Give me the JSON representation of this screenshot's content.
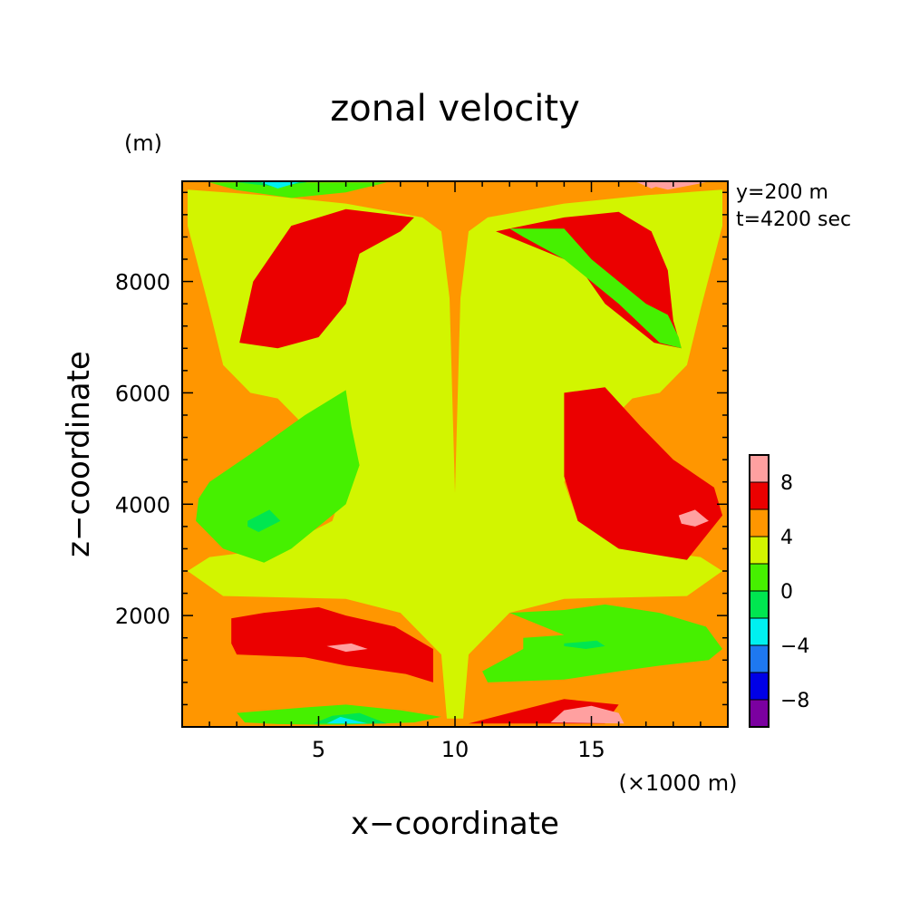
{
  "chart_data": {
    "type": "heatmap",
    "title": "zonal velocity",
    "xlabel": "x−coordinate",
    "ylabel": "z−coordinate",
    "x_unit": "(×1000 m)",
    "y_unit": "(m)",
    "annotations": [
      "y=200 m",
      "t=4200 sec"
    ],
    "xlim": [
      0,
      20
    ],
    "ylim": [
      0,
      9800
    ],
    "x_ticks": [
      5,
      10,
      15
    ],
    "x_tick_labels": [
      "5",
      "10",
      "15"
    ],
    "y_ticks": [
      2000,
      4000,
      6000,
      8000
    ],
    "y_tick_labels": [
      "2000",
      "4000",
      "6000",
      "8000"
    ],
    "grid": false,
    "colorbar": {
      "position": "right",
      "bounds": [
        -10,
        -8,
        -6,
        -4,
        -2,
        0,
        2,
        4,
        6,
        8,
        10
      ],
      "tick_labels": [
        "−8",
        "−4",
        "0",
        "4",
        "8"
      ],
      "tick_values": [
        -8,
        -4,
        0,
        4,
        8
      ],
      "colors": [
        "#7b00a0",
        "#0000e6",
        "#1e78f0",
        "#00f0f0",
        "#00e650",
        "#46f000",
        "#d2f500",
        "#ff9600",
        "#eb0000",
        "#ffa0a0"
      ]
    },
    "background_level": 1,
    "regions": [
      {
        "level": 2,
        "pts": [
          [
            0,
            0
          ],
          [
            20,
            0
          ],
          [
            20,
            9800
          ],
          [
            0,
            9800
          ]
        ]
      },
      {
        "level": 1,
        "pts": [
          [
            0.2,
            9650
          ],
          [
            3,
            9550
          ],
          [
            6,
            9400
          ],
          [
            8.8,
            9150
          ],
          [
            9.5,
            8900
          ],
          [
            9.8,
            7700
          ],
          [
            10,
            4200
          ],
          [
            10.2,
            7700
          ],
          [
            10.5,
            8900
          ],
          [
            11.2,
            9150
          ],
          [
            14,
            9400
          ],
          [
            17,
            9550
          ],
          [
            19.8,
            9650
          ],
          [
            19.8,
            9000
          ],
          [
            19,
            7500
          ],
          [
            18.5,
            6500
          ],
          [
            17.5,
            6000
          ],
          [
            16.5,
            5900
          ],
          [
            15.5,
            5400
          ],
          [
            14.5,
            4900
          ],
          [
            14,
            4400
          ],
          [
            14.5,
            3700
          ],
          [
            16.5,
            3200
          ],
          [
            19,
            3050
          ],
          [
            19.8,
            2800
          ],
          [
            18.5,
            2350
          ],
          [
            14,
            2300
          ],
          [
            12,
            2050
          ],
          [
            10.5,
            1300
          ],
          [
            10.3,
            150
          ],
          [
            9.7,
            150
          ],
          [
            9.5,
            1300
          ],
          [
            8,
            2050
          ],
          [
            6,
            2300
          ],
          [
            1.5,
            2350
          ],
          [
            0.2,
            2800
          ],
          [
            1,
            3050
          ],
          [
            3.5,
            3200
          ],
          [
            5.5,
            3700
          ],
          [
            6,
            4400
          ],
          [
            5.5,
            4900
          ],
          [
            4.5,
            5400
          ],
          [
            3.5,
            5900
          ],
          [
            2.5,
            6000
          ],
          [
            1.5,
            6500
          ],
          [
            1,
            7500
          ],
          [
            0.2,
            9000
          ]
        ]
      },
      {
        "level": 3,
        "pts": [
          [
            2.1,
            6900
          ],
          [
            2.6,
            8000
          ],
          [
            4,
            9000
          ],
          [
            6,
            9300
          ],
          [
            8.5,
            9150
          ],
          [
            8,
            8900
          ],
          [
            6.5,
            8500
          ],
          [
            6,
            7600
          ],
          [
            5,
            7000
          ],
          [
            3.5,
            6800
          ]
        ]
      },
      {
        "level": 3,
        "pts": [
          [
            14,
            9150
          ],
          [
            16,
            9250
          ],
          [
            17.2,
            8900
          ],
          [
            17.8,
            8200
          ],
          [
            18,
            7300
          ],
          [
            18.3,
            6800
          ],
          [
            17.3,
            6900
          ],
          [
            15.5,
            7600
          ],
          [
            14.5,
            8300
          ],
          [
            11.5,
            8900
          ]
        ]
      },
      {
        "level": 3,
        "pts": [
          [
            14,
            6000
          ],
          [
            15.5,
            6100
          ],
          [
            16.8,
            5400
          ],
          [
            18,
            4800
          ],
          [
            19.5,
            4300
          ],
          [
            19.8,
            3800
          ],
          [
            18.5,
            3000
          ],
          [
            16,
            3200
          ],
          [
            14.5,
            3700
          ],
          [
            14,
            4500
          ]
        ]
      },
      {
        "level": 3,
        "pts": [
          [
            1.8,
            1950
          ],
          [
            3,
            2050
          ],
          [
            5,
            2150
          ],
          [
            6,
            2000
          ],
          [
            7.8,
            1800
          ],
          [
            9.2,
            1400
          ],
          [
            9.2,
            800
          ],
          [
            8.2,
            950
          ],
          [
            6,
            1100
          ],
          [
            4.5,
            1250
          ],
          [
            2,
            1300
          ],
          [
            1.8,
            1500
          ]
        ]
      },
      {
        "level": 3,
        "pts": [
          [
            10.5,
            60
          ],
          [
            12,
            250
          ],
          [
            14,
            500
          ],
          [
            16,
            400
          ],
          [
            15.5,
            60
          ]
        ]
      },
      {
        "level": 0,
        "pts": [
          [
            2,
            250
          ],
          [
            2.3,
            80
          ],
          [
            3.5,
            50
          ],
          [
            5,
            40
          ],
          [
            6,
            40
          ],
          [
            8.5,
            80
          ],
          [
            9.5,
            180
          ],
          [
            8,
            300
          ],
          [
            6,
            400
          ],
          [
            4.5,
            350
          ]
        ]
      },
      {
        "level": 0,
        "pts": [
          [
            1,
            9780
          ],
          [
            2,
            9640
          ],
          [
            4,
            9500
          ],
          [
            6,
            9600
          ],
          [
            7.5,
            9780
          ]
        ]
      },
      {
        "level": 0,
        "pts": [
          [
            12,
            8950
          ],
          [
            14,
            8950
          ],
          [
            15,
            8400
          ],
          [
            16,
            8000
          ],
          [
            17,
            7600
          ],
          [
            17.8,
            7400
          ],
          [
            18.2,
            7000
          ],
          [
            18.3,
            6800
          ],
          [
            17.5,
            6900
          ],
          [
            16,
            7600
          ],
          [
            14,
            8400
          ],
          [
            12.5,
            8800
          ]
        ]
      },
      {
        "level": 0,
        "pts": [
          [
            0.6,
            4100
          ],
          [
            1,
            4400
          ],
          [
            2.5,
            4900
          ],
          [
            4.5,
            5600
          ],
          [
            6,
            6050
          ],
          [
            6.2,
            5400
          ],
          [
            6.5,
            4700
          ],
          [
            6,
            4000
          ],
          [
            4,
            3200
          ],
          [
            3,
            2950
          ],
          [
            1.5,
            3200
          ],
          [
            0.5,
            3700
          ]
        ]
      },
      {
        "level": 0,
        "pts": [
          [
            12,
            2050
          ],
          [
            14,
            2100
          ],
          [
            15.5,
            2200
          ],
          [
            17.5,
            2050
          ],
          [
            19.2,
            1800
          ],
          [
            19.8,
            1400
          ],
          [
            19.3,
            1200
          ],
          [
            17.5,
            1100
          ],
          [
            16,
            1000
          ],
          [
            14,
            850
          ],
          [
            11.2,
            800
          ],
          [
            11,
            1000
          ],
          [
            12.5,
            1400
          ],
          [
            12.5,
            1600
          ],
          [
            14,
            1650
          ]
        ]
      },
      {
        "level": -1,
        "pts": [
          [
            2.4,
            3700
          ],
          [
            3.2,
            3900
          ],
          [
            3.6,
            3700
          ],
          [
            3.2,
            3600
          ],
          [
            2.8,
            3500
          ],
          [
            2.4,
            3600
          ]
        ]
      },
      {
        "level": -1,
        "pts": [
          [
            14,
            1500
          ],
          [
            15.2,
            1550
          ],
          [
            15.5,
            1450
          ],
          [
            14.8,
            1400
          ],
          [
            14,
            1450
          ]
        ]
      },
      {
        "level": -1,
        "pts": [
          [
            4.8,
            9800
          ],
          [
            3.5,
            9700
          ],
          [
            2,
            9780
          ]
        ]
      },
      {
        "level": -1,
        "pts": [
          [
            4.8,
            60
          ],
          [
            5.5,
            200
          ],
          [
            6.5,
            250
          ],
          [
            7.5,
            60
          ]
        ]
      },
      {
        "level": 4,
        "pts": [
          [
            16.5,
            9800
          ],
          [
            17.8,
            9650
          ],
          [
            19.2,
            9780
          ]
        ]
      },
      {
        "level": 4,
        "pts": [
          [
            18.2,
            3800
          ],
          [
            18.8,
            3900
          ],
          [
            19.3,
            3700
          ],
          [
            18.8,
            3600
          ],
          [
            18.3,
            3650
          ]
        ]
      },
      {
        "level": 4,
        "pts": [
          [
            13.5,
            80
          ],
          [
            14,
            300
          ],
          [
            15,
            380
          ],
          [
            16,
            250
          ],
          [
            16.2,
            60
          ]
        ]
      },
      {
        "level": 4,
        "pts": [
          [
            5.3,
            1450
          ],
          [
            6.2,
            1500
          ],
          [
            6.8,
            1400
          ],
          [
            6,
            1350
          ]
        ]
      },
      {
        "level": 5,
        "pts": [
          [
            16.6,
            9800
          ],
          [
            17.2,
            9670
          ],
          [
            17.9,
            9800
          ]
        ]
      },
      {
        "level": 5,
        "pts": [
          [
            14.3,
            100
          ],
          [
            14.8,
            200
          ],
          [
            15.4,
            100
          ]
        ]
      },
      {
        "level": -2,
        "pts": [
          [
            2.8,
            9800
          ],
          [
            3.5,
            9670
          ],
          [
            4.4,
            9800
          ]
        ]
      },
      {
        "level": -2,
        "pts": [
          [
            5.3,
            60
          ],
          [
            5.8,
            180
          ],
          [
            6.8,
            60
          ]
        ]
      }
    ]
  }
}
